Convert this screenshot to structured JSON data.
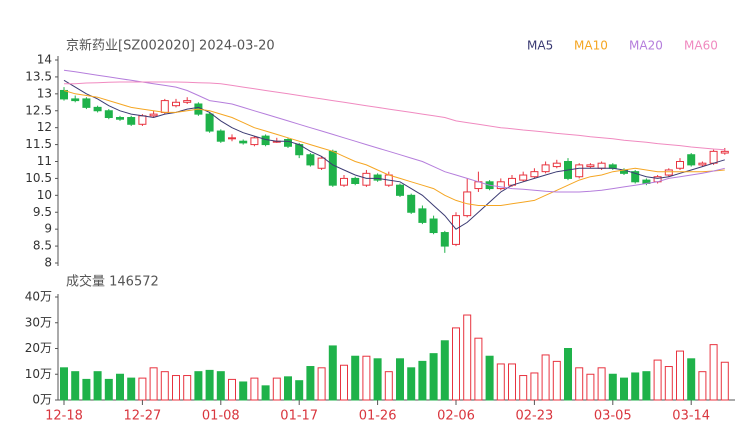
{
  "chart_data": [
    {
      "type": "candlestick",
      "title": "京新药业[SZ002020] 2024-03-20",
      "open": [
        13.1,
        12.85,
        12.85,
        12.6,
        12.5,
        12.3,
        12.3,
        12.1,
        12.35,
        12.45,
        12.65,
        12.75,
        12.7,
        12.4,
        11.9,
        11.7,
        11.6,
        11.5,
        11.75,
        11.6,
        11.65,
        11.5,
        11.2,
        10.8,
        11.3,
        10.3,
        10.5,
        10.3,
        10.6,
        10.3,
        10.3,
        10.0,
        9.6,
        9.3,
        8.9,
        8.55,
        9.4,
        10.2,
        10.4,
        10.2,
        10.3,
        10.45,
        10.55,
        10.7,
        10.85,
        11.0,
        10.55,
        10.85,
        10.8,
        10.9,
        10.75,
        10.7,
        10.45,
        10.4,
        10.6,
        10.8,
        11.2,
        10.9,
        10.95,
        11.25
      ],
      "high": [
        13.2,
        12.95,
        12.9,
        12.65,
        12.55,
        12.35,
        12.35,
        12.4,
        12.5,
        12.85,
        12.85,
        12.9,
        12.75,
        12.45,
        11.95,
        11.8,
        11.65,
        11.75,
        11.8,
        11.7,
        11.7,
        11.55,
        11.25,
        11.15,
        11.35,
        10.6,
        10.55,
        10.75,
        10.65,
        10.7,
        10.35,
        10.05,
        9.7,
        9.4,
        8.95,
        9.5,
        10.5,
        10.7,
        10.45,
        10.5,
        10.6,
        10.7,
        10.8,
        11.0,
        11.05,
        11.1,
        10.95,
        10.95,
        11.0,
        10.95,
        10.8,
        10.75,
        10.5,
        10.6,
        10.8,
        11.1,
        11.25,
        11.0,
        11.35,
        11.4
      ],
      "low": [
        12.8,
        12.75,
        12.55,
        12.45,
        12.25,
        12.2,
        12.05,
        12.05,
        12.3,
        12.4,
        12.6,
        12.7,
        12.35,
        11.85,
        11.55,
        11.6,
        11.5,
        11.45,
        11.45,
        11.55,
        11.4,
        11.1,
        10.85,
        10.75,
        10.25,
        10.25,
        10.3,
        10.25,
        10.4,
        10.25,
        9.95,
        9.45,
        9.15,
        8.85,
        8.3,
        8.5,
        9.35,
        10.1,
        10.15,
        10.15,
        10.25,
        10.4,
        10.5,
        10.65,
        10.8,
        10.45,
        10.5,
        10.8,
        10.75,
        10.75,
        10.6,
        10.35,
        10.3,
        10.35,
        10.55,
        10.75,
        10.85,
        10.85,
        10.9,
        11.2
      ],
      "close": [
        12.85,
        12.8,
        12.6,
        12.5,
        12.3,
        12.25,
        12.1,
        12.35,
        12.4,
        12.8,
        12.75,
        12.8,
        12.4,
        11.9,
        11.6,
        11.7,
        11.55,
        11.7,
        11.5,
        11.6,
        11.45,
        11.2,
        10.9,
        11.1,
        10.3,
        10.5,
        10.35,
        10.65,
        10.45,
        10.6,
        10.0,
        9.5,
        9.2,
        8.9,
        8.5,
        9.4,
        10.1,
        10.4,
        10.2,
        10.4,
        10.5,
        10.6,
        10.7,
        10.9,
        10.95,
        10.5,
        10.9,
        10.9,
        10.95,
        10.8,
        10.65,
        10.4,
        10.35,
        10.55,
        10.75,
        11.0,
        10.9,
        10.95,
        11.3,
        11.3
      ],
      "up_color": "#e8333f",
      "down_color": "#1fb24a",
      "series": [
        {
          "name": "MA5",
          "color": "#3b3b73",
          "values": [
            13.4,
            13.2,
            13.0,
            12.85,
            12.65,
            12.5,
            12.4,
            12.35,
            12.3,
            12.4,
            12.45,
            12.55,
            12.6,
            12.45,
            12.2,
            12.0,
            11.85,
            11.75,
            11.65,
            11.6,
            11.6,
            11.5,
            11.3,
            11.15,
            10.9,
            10.75,
            10.6,
            10.5,
            10.5,
            10.45,
            10.4,
            10.2,
            10.0,
            9.7,
            9.4,
            9.0,
            9.2,
            9.5,
            9.8,
            10.1,
            10.3,
            10.4,
            10.5,
            10.6,
            10.7,
            10.75,
            10.8,
            10.8,
            10.8,
            10.8,
            10.75,
            10.65,
            10.55,
            10.5,
            10.55,
            10.65,
            10.75,
            10.85,
            10.95,
            11.05
          ]
        },
        {
          "name": "MA10",
          "color": "#f5a623",
          "values": [
            13.1,
            13.0,
            12.95,
            12.9,
            12.8,
            12.7,
            12.6,
            12.55,
            12.5,
            12.45,
            12.45,
            12.5,
            12.55,
            12.5,
            12.4,
            12.3,
            12.15,
            12.0,
            11.9,
            11.8,
            11.7,
            11.6,
            11.5,
            11.4,
            11.3,
            11.15,
            11.0,
            10.9,
            10.75,
            10.6,
            10.5,
            10.4,
            10.3,
            10.2,
            10.0,
            9.85,
            9.75,
            9.7,
            9.7,
            9.7,
            9.75,
            9.8,
            9.85,
            10.0,
            10.15,
            10.3,
            10.45,
            10.55,
            10.6,
            10.7,
            10.75,
            10.8,
            10.75,
            10.7,
            10.7,
            10.7,
            10.7,
            10.7,
            10.72,
            10.75
          ]
        },
        {
          "name": "MA20",
          "color": "#b57edc",
          "values": [
            13.7,
            13.65,
            13.6,
            13.55,
            13.5,
            13.45,
            13.4,
            13.35,
            13.3,
            13.25,
            13.2,
            13.1,
            12.95,
            12.8,
            12.75,
            12.7,
            12.6,
            12.5,
            12.4,
            12.3,
            12.2,
            12.1,
            12.0,
            11.9,
            11.8,
            11.7,
            11.6,
            11.5,
            11.4,
            11.3,
            11.2,
            11.1,
            11.0,
            10.85,
            10.7,
            10.6,
            10.5,
            10.4,
            10.3,
            10.25,
            10.2,
            10.18,
            10.15,
            10.12,
            10.1,
            10.1,
            10.1,
            10.12,
            10.15,
            10.2,
            10.25,
            10.3,
            10.35,
            10.4,
            10.5,
            10.55,
            10.6,
            10.65,
            10.72,
            10.8
          ]
        },
        {
          "name": "MA60",
          "color": "#f08ac0",
          "values": [
            13.3,
            13.3,
            13.32,
            13.33,
            13.34,
            13.35,
            13.35,
            13.35,
            13.35,
            13.35,
            13.35,
            13.34,
            13.33,
            13.32,
            13.3,
            13.25,
            13.2,
            13.15,
            13.1,
            13.05,
            13.0,
            12.95,
            12.9,
            12.85,
            12.8,
            12.75,
            12.7,
            12.65,
            12.6,
            12.55,
            12.5,
            12.45,
            12.4,
            12.35,
            12.3,
            12.2,
            12.15,
            12.1,
            12.05,
            12.0,
            11.97,
            11.93,
            11.9,
            11.87,
            11.83,
            11.8,
            11.77,
            11.73,
            11.7,
            11.67,
            11.63,
            11.6,
            11.57,
            11.53,
            11.5,
            11.47,
            11.43,
            11.4,
            11.37,
            11.35
          ]
        }
      ],
      "ylim": [
        8,
        14
      ],
      "yticks": [
        8,
        8.5,
        9,
        9.5,
        10,
        10.5,
        11,
        11.5,
        12,
        12.5,
        13,
        13.5,
        14
      ]
    },
    {
      "type": "bar",
      "title": "成交量 146572",
      "categories": [
        "12-18",
        null,
        null,
        null,
        null,
        null,
        null,
        "12-27",
        null,
        null,
        null,
        null,
        null,
        null,
        "01-08",
        null,
        null,
        null,
        null,
        null,
        null,
        "01-17",
        null,
        null,
        null,
        null,
        null,
        null,
        "01-26",
        null,
        null,
        null,
        null,
        null,
        null,
        "02-06",
        null,
        null,
        null,
        null,
        null,
        null,
        "02-23",
        null,
        null,
        null,
        null,
        null,
        null,
        "03-05",
        null,
        null,
        null,
        null,
        null,
        null,
        "03-14",
        null,
        null,
        null
      ],
      "values": [
        12.5,
        11,
        8,
        11,
        8,
        10,
        8.5,
        8.5,
        12.5,
        11,
        9.5,
        9.5,
        11,
        11.5,
        11,
        8,
        7,
        8.5,
        5.5,
        8.5,
        9,
        7.5,
        13,
        12.5,
        21,
        13.5,
        17,
        17,
        16,
        11,
        16,
        12.5,
        15,
        18,
        23,
        28,
        33,
        24,
        17,
        14,
        14,
        9.5,
        10.5,
        17.5,
        15,
        20,
        12.5,
        10,
        12.5,
        10,
        8.5,
        10.5,
        11,
        15.5,
        13,
        19,
        16,
        11,
        21.5,
        14.66
      ],
      "ylim": [
        0,
        40
      ],
      "yticks": [
        {
          "value": 0,
          "label": "0万"
        },
        {
          "value": 10,
          "label": "10万"
        },
        {
          "value": 20,
          "label": "20万"
        },
        {
          "value": 30,
          "label": "30万"
        },
        {
          "value": 40,
          "label": "40万"
        }
      ]
    }
  ]
}
